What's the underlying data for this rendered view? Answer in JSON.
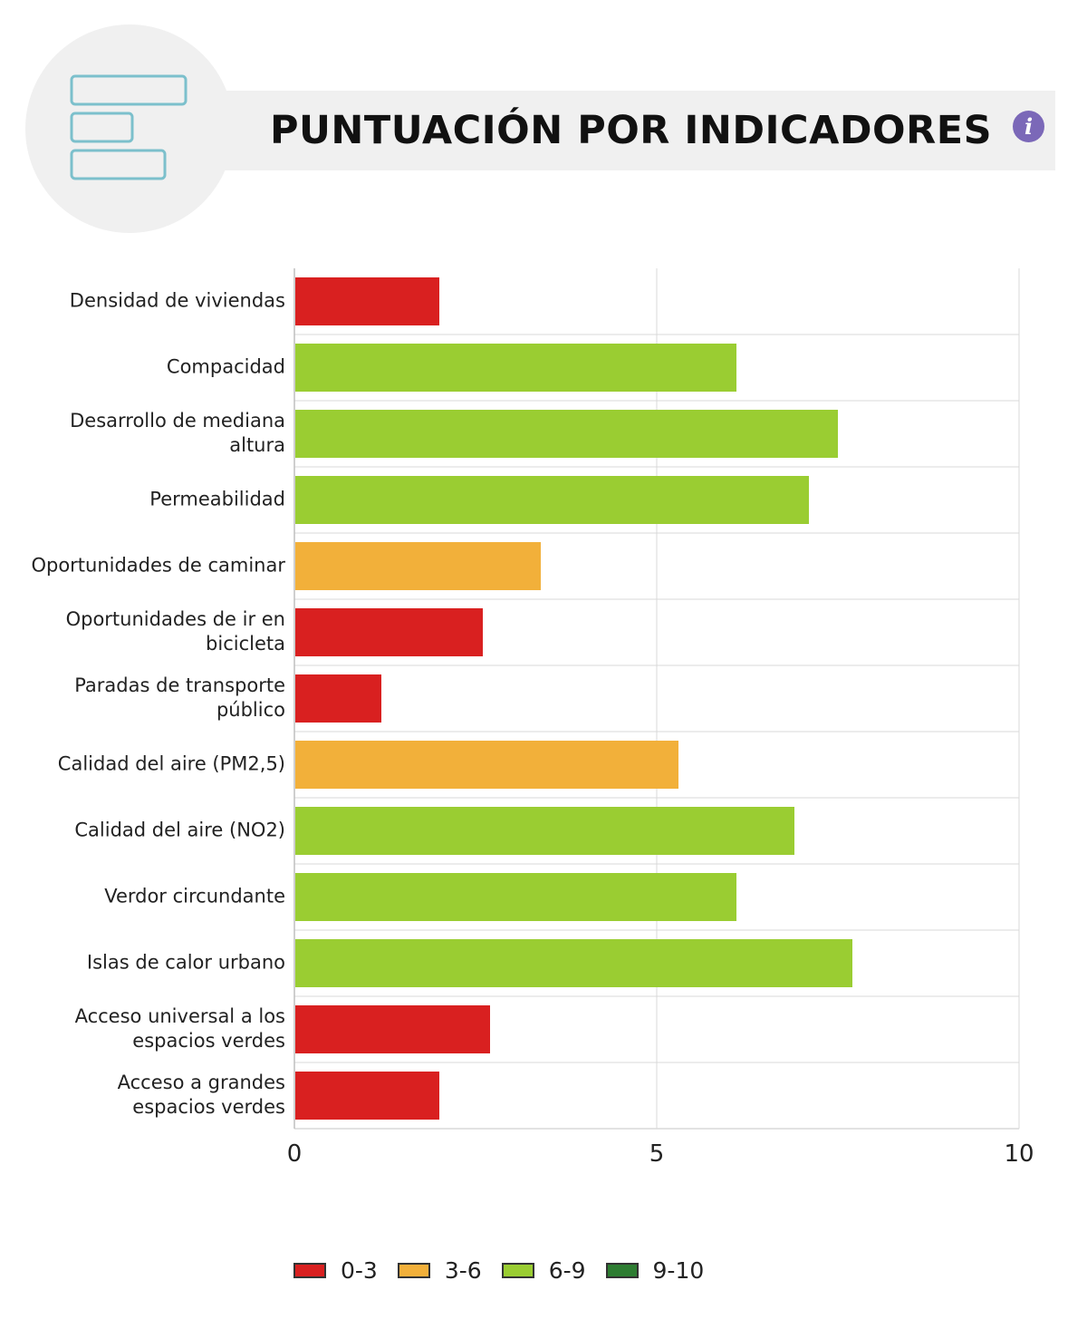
{
  "header": {
    "title": "PUNTUACIÓN POR INDICADORES",
    "info_glyph": "i",
    "icon": "bar-chart-icon"
  },
  "colors": {
    "red": "#d92020",
    "orange": "#f2b03a",
    "light_green": "#9acd32",
    "dark_green": "#2e7d32",
    "gridline": "#d8d8d8",
    "info": "#7b68b8",
    "icon_outline": "#7cc0cc"
  },
  "chart_data": {
    "type": "bar",
    "orientation": "horizontal",
    "categories": [
      [
        "Densidad de viviendas"
      ],
      [
        "Compacidad"
      ],
      [
        "Desarrollo de mediana",
        "altura"
      ],
      [
        "Permeabilidad"
      ],
      [
        "Oportunidades de caminar"
      ],
      [
        "Oportunidades de ir en",
        "bicicleta"
      ],
      [
        "Paradas de transporte",
        "público"
      ],
      [
        "Calidad del aire (PM2,5)"
      ],
      [
        "Calidad del aire (NO2)"
      ],
      [
        "Verdor circundante"
      ],
      [
        "Islas de calor urbano"
      ],
      [
        "Acceso universal a los",
        "espacios verdes"
      ],
      [
        "Acceso a grandes",
        "espacios verdes"
      ]
    ],
    "values": [
      2.0,
      6.1,
      7.5,
      7.1,
      3.4,
      2.6,
      1.2,
      5.3,
      6.9,
      6.1,
      7.7,
      2.7,
      2.0
    ],
    "xlim": [
      0,
      10
    ],
    "xticks": [
      "0",
      "5",
      "10"
    ],
    "grid": true,
    "legend_position": "bottom",
    "legend": [
      {
        "label": "0-3",
        "color": "#d92020",
        "min": 0,
        "max": 3
      },
      {
        "label": "3-6",
        "color": "#f2b03a",
        "min": 3,
        "max": 6
      },
      {
        "label": "6-9",
        "color": "#9acd32",
        "min": 6,
        "max": 9
      },
      {
        "label": "9-10",
        "color": "#2e7d32",
        "min": 9,
        "max": 10
      }
    ]
  }
}
